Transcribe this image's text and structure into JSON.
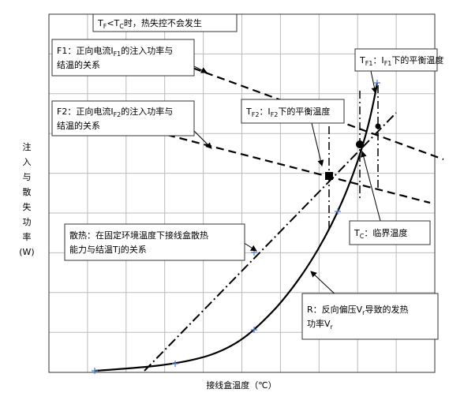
{
  "title": [
    {
      "t": "T"
    },
    {
      "t": "F",
      "sub": true
    },
    {
      "t": "<T"
    },
    {
      "t": "C",
      "sub": true
    },
    {
      "t": "时，热失控不会发生"
    }
  ],
  "labels": [
    {
      "lines": [
        [
          {
            "t": "F1：正向电流I"
          },
          {
            "t": "F1",
            "sub": true
          },
          {
            "t": "的注入功率与"
          }
        ],
        [
          {
            "t": "结温的关系"
          }
        ]
      ]
    },
    {
      "lines": [
        [
          {
            "t": "F2：正向电流I"
          },
          {
            "t": "F2",
            "sub": true
          },
          {
            "t": "的注入功率与"
          }
        ],
        [
          {
            "t": "结温的关系"
          }
        ]
      ]
    },
    {
      "lines": [
        [
          {
            "t": "T"
          },
          {
            "t": "F1",
            "sub": true
          },
          {
            "t": "：I"
          },
          {
            "t": "F1",
            "sub": true
          },
          {
            "t": "下的平衡温度"
          }
        ]
      ]
    },
    {
      "lines": [
        [
          {
            "t": "T"
          },
          {
            "t": "F2",
            "sub": true
          },
          {
            "t": "：I"
          },
          {
            "t": "F2",
            "sub": true
          },
          {
            "t": "下的平衡温度"
          }
        ]
      ]
    },
    {
      "lines": [
        [
          {
            "t": "T"
          },
          {
            "t": "C",
            "sub": true
          },
          {
            "t": "：临界温度"
          }
        ]
      ]
    },
    {
      "lines": [
        [
          {
            "t": "散热：在固定环境温度下接线盒散热"
          }
        ],
        [
          {
            "t": "能力与结温Tj的关系"
          }
        ]
      ]
    },
    {
      "lines": [
        [
          {
            "t": "R：反向偏压V"
          },
          {
            "t": "r",
            "sub": true
          },
          {
            "t": "导致的发热"
          }
        ],
        [
          {
            "t": "功率V"
          },
          {
            "t": "r",
            "sub": true
          }
        ]
      ]
    }
  ],
  "y_label": [
    "注",
    "入",
    "与",
    "散",
    "失",
    "功",
    "率",
    "(W)"
  ],
  "x_label": "接线盒温度（℃）"
}
